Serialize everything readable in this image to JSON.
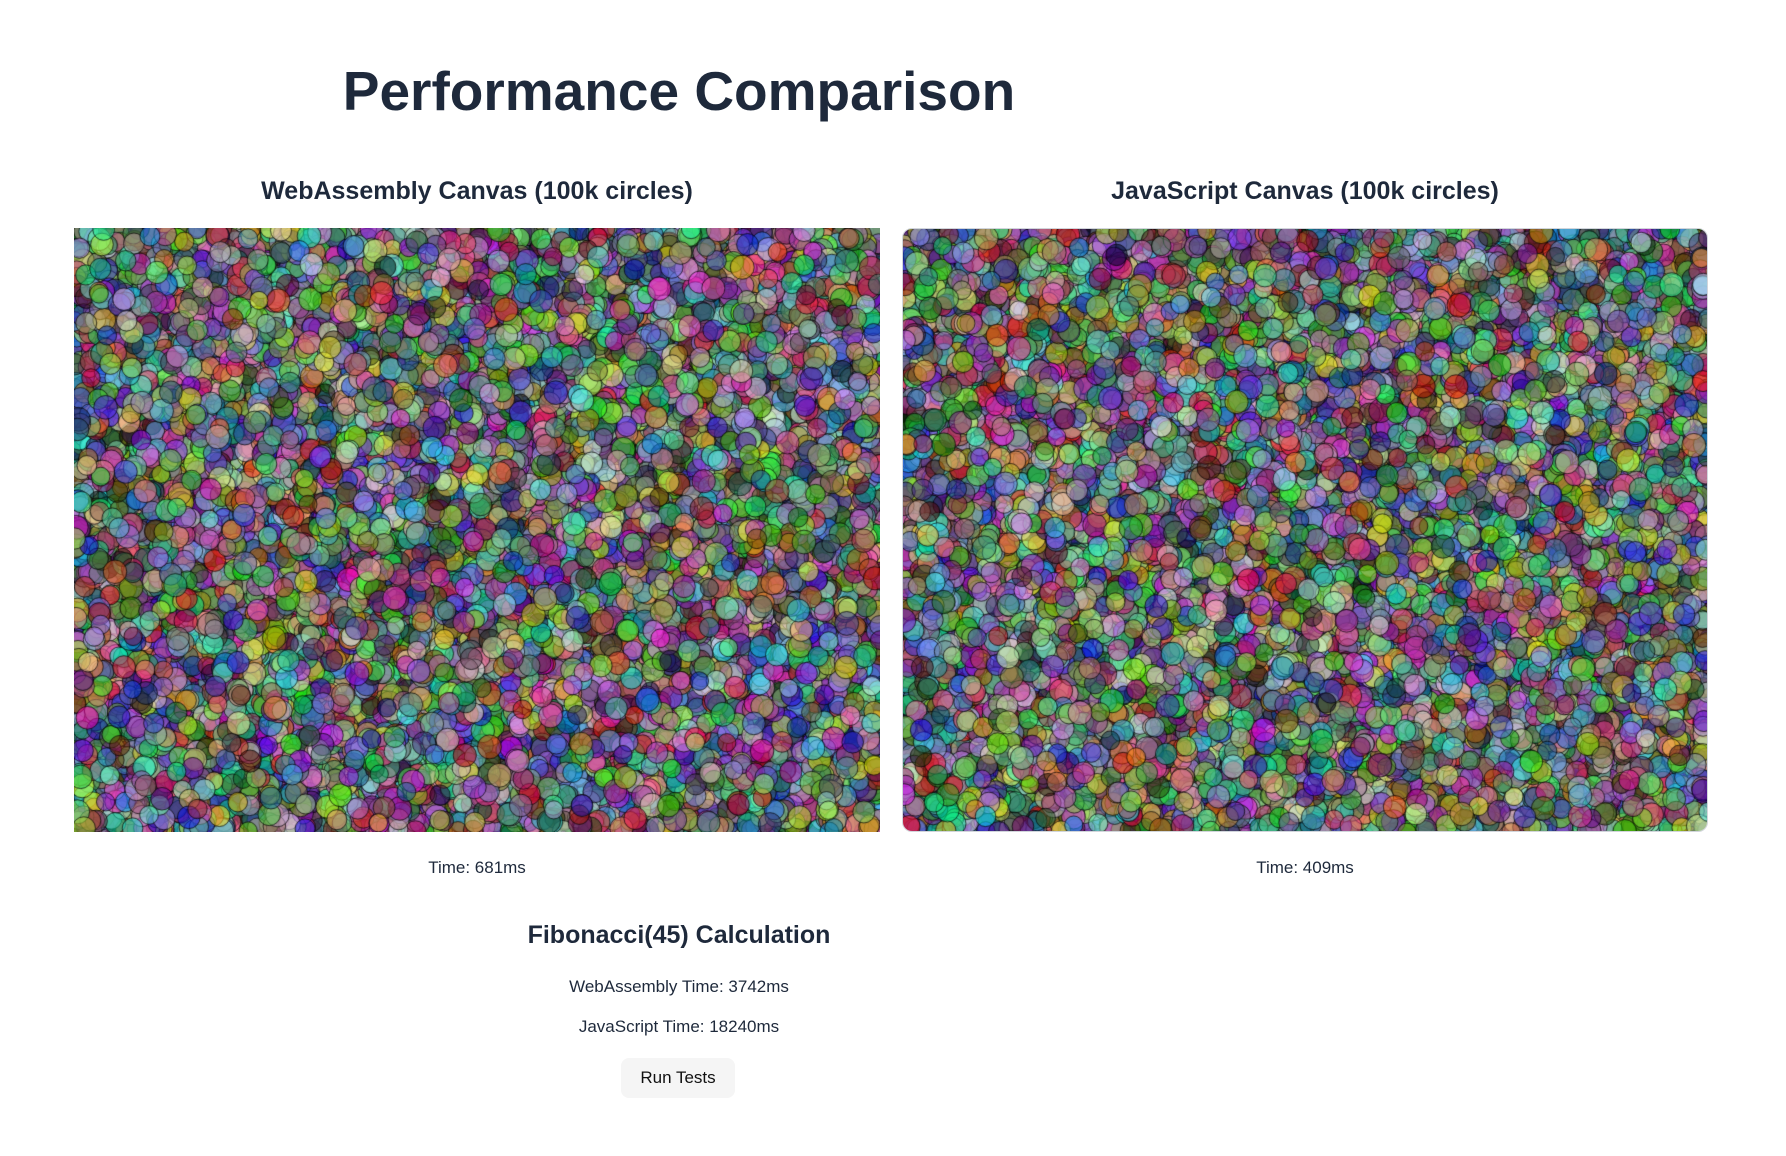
{
  "page": {
    "title": "Performance Comparison"
  },
  "wasm_panel": {
    "title": "WebAssembly Canvas (100k circles)",
    "time_label": "Time: 681ms"
  },
  "js_panel": {
    "title": "JavaScript Canvas (100k circles)",
    "time_label": "Time: 409ms"
  },
  "fibonacci": {
    "title": "Fibonacci(45) Calculation",
    "wasm_time_label": "WebAssembly Time: 3742ms",
    "js_time_label": "JavaScript Time: 18240ms",
    "run_button_label": "Run Tests"
  }
}
